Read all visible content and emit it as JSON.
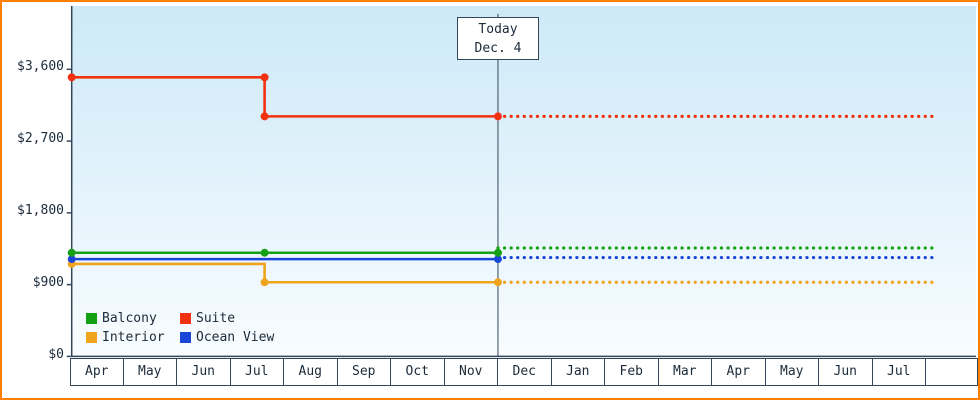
{
  "colors": {
    "frame": "#ff8000",
    "axis": "#33475b",
    "text": "#1c2b3a",
    "plot_bg_top": "#cde9f8",
    "plot_bg_bottom": "#f8fcff",
    "today_line": "#33475b"
  },
  "today_marker": {
    "line1": "Today",
    "line2": "Dec. 4"
  },
  "legend": {
    "items": [
      {
        "id": "balcony",
        "label": "Balcony",
        "color": "#16a016"
      },
      {
        "id": "suite",
        "label": "Suite",
        "color": "#f23110"
      },
      {
        "id": "interior",
        "label": "Interior",
        "color": "#f0a41c"
      },
      {
        "id": "ocean-view",
        "label": "Ocean View",
        "color": "#1a46d8"
      }
    ]
  },
  "chart_data": {
    "type": "line",
    "title": "",
    "x_tick_labels": [
      "Apr",
      "May",
      "Jun",
      "Jul",
      "Aug",
      "Sep",
      "Oct",
      "Nov",
      "Dec",
      "Jan",
      "Feb",
      "Mar",
      "Apr",
      "May",
      "Jun",
      "Jul"
    ],
    "y_tick_labels": [
      "$0",
      "$900",
      "$1,800",
      "$2,700",
      "$3,600"
    ],
    "y_ticks": [
      0,
      900,
      1800,
      2700,
      3600
    ],
    "ylim": [
      0,
      4300
    ],
    "grid": false,
    "legend_position": "bottom-left",
    "today": {
      "month_index": 8,
      "label": "Dec. 4"
    },
    "forecast_end_month_index": 16.15,
    "series": [
      {
        "name": "Suite",
        "color": "#f23110",
        "solid": [
          {
            "m": 0,
            "v": 3500
          },
          {
            "m": 3.62,
            "v": 3500
          },
          {
            "m": 3.62,
            "v": 3010
          },
          {
            "m": 8,
            "v": 3010
          }
        ],
        "markers": [
          {
            "m": 0,
            "v": 3500
          },
          {
            "m": 3.62,
            "v": 3500
          },
          {
            "m": 3.62,
            "v": 3010
          },
          {
            "m": 8,
            "v": 3010
          }
        ],
        "forecast_value": 3010
      },
      {
        "name": "Balcony",
        "color": "#16a016",
        "solid": [
          {
            "m": 0,
            "v": 1300
          },
          {
            "m": 8,
            "v": 1300
          }
        ],
        "markers": [
          {
            "m": 0,
            "v": 1300
          },
          {
            "m": 3.62,
            "v": 1300
          },
          {
            "m": 8,
            "v": 1300
          }
        ],
        "forecast_value": 1360
      },
      {
        "name": "Ocean View",
        "color": "#1a46d8",
        "solid": [
          {
            "m": 0,
            "v": 1220
          },
          {
            "m": 8,
            "v": 1220
          }
        ],
        "markers": [
          {
            "m": 0,
            "v": 1220
          },
          {
            "m": 8,
            "v": 1220
          }
        ],
        "forecast_value": 1240
      },
      {
        "name": "Interior",
        "color": "#f0a41c",
        "solid": [
          {
            "m": 0,
            "v": 1160
          },
          {
            "m": 3.62,
            "v": 1160
          },
          {
            "m": 3.62,
            "v": 930
          },
          {
            "m": 8,
            "v": 930
          }
        ],
        "markers": [
          {
            "m": 0,
            "v": 1160
          },
          {
            "m": 3.62,
            "v": 930
          },
          {
            "m": 8,
            "v": 930
          }
        ],
        "forecast_value": 930
      }
    ]
  }
}
